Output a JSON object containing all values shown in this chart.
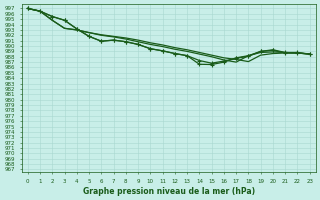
{
  "title": "Graphe pression niveau de la mer (hPa)",
  "bg_color": "#c8eee8",
  "grid_color": "#a8d8d0",
  "line_color": "#1a5c1a",
  "xlim": [
    -0.5,
    23.5
  ],
  "ylim": [
    966.5,
    997.8
  ],
  "x_ticks": [
    0,
    1,
    2,
    3,
    4,
    5,
    6,
    7,
    8,
    9,
    10,
    11,
    12,
    13,
    14,
    15,
    16,
    17,
    18,
    19,
    20,
    21,
    22,
    23
  ],
  "y_ticks": [
    967,
    968,
    969,
    970,
    971,
    972,
    973,
    974,
    975,
    976,
    977,
    978,
    979,
    980,
    981,
    982,
    983,
    984,
    985,
    986,
    987,
    988,
    989,
    990,
    991,
    992,
    993,
    994,
    995,
    996,
    997
  ],
  "series": [
    {
      "data": [
        997.0,
        996.5,
        995.5,
        994.8,
        993.2,
        991.8,
        990.9,
        991.1,
        990.8,
        990.3,
        989.5,
        989.1,
        988.6,
        988.2,
        987.3,
        986.8,
        987.2,
        987.7,
        988.1,
        989.0,
        989.3,
        988.8,
        988.8,
        988.5
      ],
      "markers": true,
      "lw": 0.9
    },
    {
      "data": [
        997.0,
        996.5,
        995.5,
        994.8,
        993.2,
        991.8,
        990.9,
        991.1,
        990.8,
        990.3,
        989.5,
        989.1,
        988.6,
        988.2,
        986.6,
        986.55,
        987.0,
        987.8,
        988.2,
        989.0,
        989.2,
        988.7,
        988.7,
        988.5
      ],
      "markers": true,
      "lw": 0.9
    },
    {
      "data": [
        997.0,
        996.5,
        994.8,
        993.3,
        993.0,
        992.5,
        992.1,
        991.8,
        991.5,
        991.1,
        990.6,
        990.2,
        989.7,
        989.3,
        988.8,
        988.3,
        987.8,
        987.5,
        987.1,
        988.3,
        988.6,
        988.7,
        988.7,
        988.5
      ],
      "markers": false,
      "lw": 0.9
    },
    {
      "data": [
        997.0,
        996.5,
        994.8,
        993.3,
        993.0,
        992.5,
        992.0,
        991.7,
        991.3,
        990.8,
        990.3,
        989.9,
        989.4,
        989.0,
        988.5,
        988.0,
        987.4,
        987.0,
        988.2,
        988.8,
        988.9,
        988.8,
        988.7,
        988.5
      ],
      "markers": false,
      "lw": 0.9
    }
  ]
}
